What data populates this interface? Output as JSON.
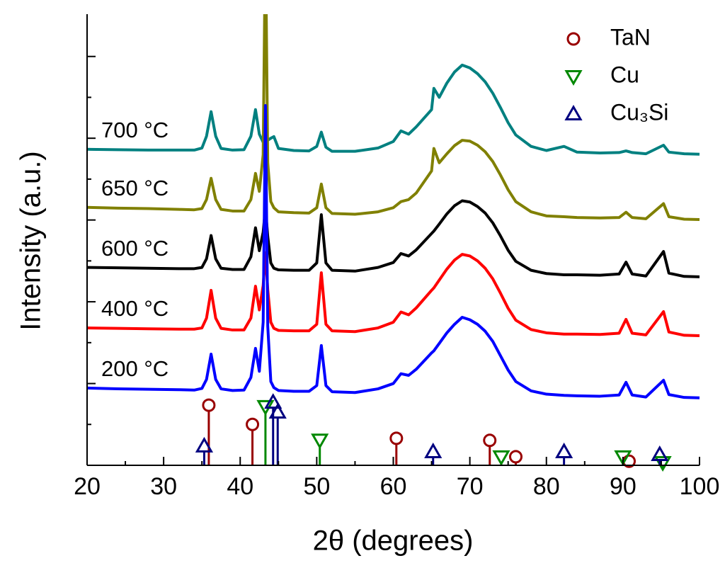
{
  "chart_data": {
    "type": "line",
    "xlabel": "2θ (degrees)",
    "ylabel": "Intensity (a.u.)",
    "xlim": [
      20,
      100
    ],
    "xticks": [
      20,
      30,
      40,
      50,
      60,
      70,
      80,
      90,
      100
    ],
    "ylim": [
      0,
      11
    ],
    "yticks": [
      2,
      4,
      6,
      8,
      10
    ],
    "x": [
      20,
      24,
      28,
      32,
      34,
      35,
      35.6,
      36.2,
      36.8,
      37.5,
      39,
      40.5,
      41.4,
      42,
      42.5,
      43,
      43.3,
      43.6,
      44,
      44.4,
      45,
      47,
      49,
      50,
      50.6,
      51.2,
      52,
      55,
      58,
      60,
      61,
      62,
      63,
      65,
      65.3,
      66,
      67,
      68,
      69,
      70,
      71,
      72,
      73,
      74,
      75,
      76,
      78,
      80,
      82.3,
      84,
      87,
      89.5,
      90.4,
      91.2,
      93,
      95.3,
      96,
      98,
      100
    ],
    "series": [
      {
        "name": "200 °C",
        "color": "#0000ff",
        "values": [
          1.89,
          1.87,
          1.86,
          1.85,
          1.84,
          1.88,
          2.1,
          2.72,
          2.1,
          1.87,
          1.83,
          1.84,
          2.15,
          2.86,
          2.3,
          3.5,
          8.8,
          3.4,
          2.05,
          1.9,
          1.83,
          1.81,
          1.81,
          1.95,
          2.93,
          1.95,
          1.8,
          1.78,
          1.87,
          2.0,
          2.24,
          2.2,
          2.35,
          2.75,
          2.8,
          2.98,
          3.24,
          3.45,
          3.62,
          3.56,
          3.45,
          3.28,
          3.03,
          2.68,
          2.33,
          2.05,
          1.82,
          1.74,
          1.71,
          1.7,
          1.69,
          1.72,
          2.03,
          1.72,
          1.67,
          2.08,
          1.73,
          1.66,
          1.65
        ]
      },
      {
        "name": "400 °C",
        "color": "#ff0000",
        "values": [
          3.36,
          3.35,
          3.34,
          3.33,
          3.33,
          3.36,
          3.6,
          4.28,
          3.6,
          3.35,
          3.31,
          3.31,
          3.6,
          4.38,
          3.8,
          4.4,
          5.2,
          4.3,
          3.5,
          3.35,
          3.3,
          3.29,
          3.29,
          3.45,
          4.71,
          3.45,
          3.29,
          3.27,
          3.36,
          3.5,
          3.75,
          3.68,
          3.85,
          4.28,
          4.34,
          4.53,
          4.8,
          5.02,
          5.16,
          5.12,
          5.0,
          4.82,
          4.56,
          4.21,
          3.84,
          3.55,
          3.32,
          3.24,
          3.21,
          3.21,
          3.2,
          3.23,
          3.57,
          3.23,
          3.19,
          3.76,
          3.26,
          3.18,
          3.17
        ]
      },
      {
        "name": "600 °C",
        "color": "#000000",
        "values": [
          4.84,
          4.83,
          4.82,
          4.81,
          4.81,
          4.84,
          5.05,
          5.62,
          5.05,
          4.82,
          4.79,
          4.79,
          5.1,
          5.81,
          5.25,
          5.7,
          6.3,
          5.6,
          4.95,
          4.82,
          4.78,
          4.77,
          4.77,
          4.95,
          6.13,
          4.95,
          4.77,
          4.75,
          4.84,
          4.96,
          5.18,
          5.12,
          5.27,
          5.67,
          5.73,
          5.9,
          6.15,
          6.35,
          6.47,
          6.44,
          6.33,
          6.17,
          5.93,
          5.61,
          5.26,
          4.99,
          4.77,
          4.69,
          4.66,
          4.66,
          4.65,
          4.68,
          4.97,
          4.68,
          4.63,
          5.23,
          4.7,
          4.62,
          4.61
        ]
      },
      {
        "name": "650 °C",
        "color": "#808000",
        "values": [
          6.31,
          6.29,
          6.28,
          6.26,
          6.25,
          6.28,
          6.5,
          7.02,
          6.5,
          6.26,
          6.22,
          6.22,
          6.5,
          7.14,
          6.7,
          7.6,
          13,
          7.4,
          6.45,
          6.3,
          6.2,
          6.18,
          6.17,
          6.3,
          6.88,
          6.3,
          6.16,
          6.14,
          6.2,
          6.3,
          6.45,
          6.5,
          6.66,
          7.2,
          7.75,
          7.4,
          7.62,
          7.82,
          7.95,
          7.93,
          7.83,
          7.67,
          7.43,
          7.1,
          6.74,
          6.45,
          6.2,
          6.1,
          6.08,
          6.06,
          6.05,
          6.06,
          6.19,
          6.06,
          6.03,
          6.4,
          6.08,
          6.02,
          6.01
        ]
      },
      {
        "name": "700 °C",
        "color": "#008080",
        "values": [
          7.73,
          7.72,
          7.71,
          7.71,
          7.71,
          7.76,
          8.05,
          8.65,
          8.05,
          7.75,
          7.71,
          7.72,
          8.05,
          8.7,
          8.1,
          7.9,
          7.85,
          7.95,
          8.0,
          8.04,
          7.75,
          7.7,
          7.69,
          7.8,
          8.15,
          7.78,
          7.68,
          7.68,
          7.76,
          7.92,
          8.18,
          8.1,
          8.28,
          8.7,
          9.22,
          9.0,
          9.35,
          9.62,
          9.79,
          9.72,
          9.58,
          9.38,
          9.1,
          8.75,
          8.38,
          8.08,
          7.8,
          7.7,
          7.8,
          7.66,
          7.64,
          7.65,
          7.69,
          7.65,
          7.62,
          7.83,
          7.66,
          7.62,
          7.61
        ]
      }
    ],
    "references": [
      {
        "name": "TaN",
        "color": "#990000",
        "marker": "circle",
        "x": [
          35.9,
          41.6,
          60.4,
          72.6,
          76.0,
          90.8
        ],
        "values": [
          1.47,
          1.0,
          0.66,
          0.61,
          0.21,
          0.1
        ]
      },
      {
        "name": "Cu",
        "color": "#008800",
        "marker": "triangle-down",
        "x": [
          43.3,
          50.4,
          74.1,
          90.0,
          95.2
        ],
        "values": [
          1.44,
          0.62,
          0.21,
          0.21,
          0.07
        ]
      },
      {
        "name": "Cu₃Si",
        "color": "#000080",
        "marker": "triangle-up",
        "x": [
          35.3,
          44.3,
          44.9,
          65.2,
          82.3,
          94.8
        ],
        "values": [
          0.47,
          1.54,
          1.3,
          0.33,
          0.33,
          0.26
        ]
      }
    ]
  }
}
